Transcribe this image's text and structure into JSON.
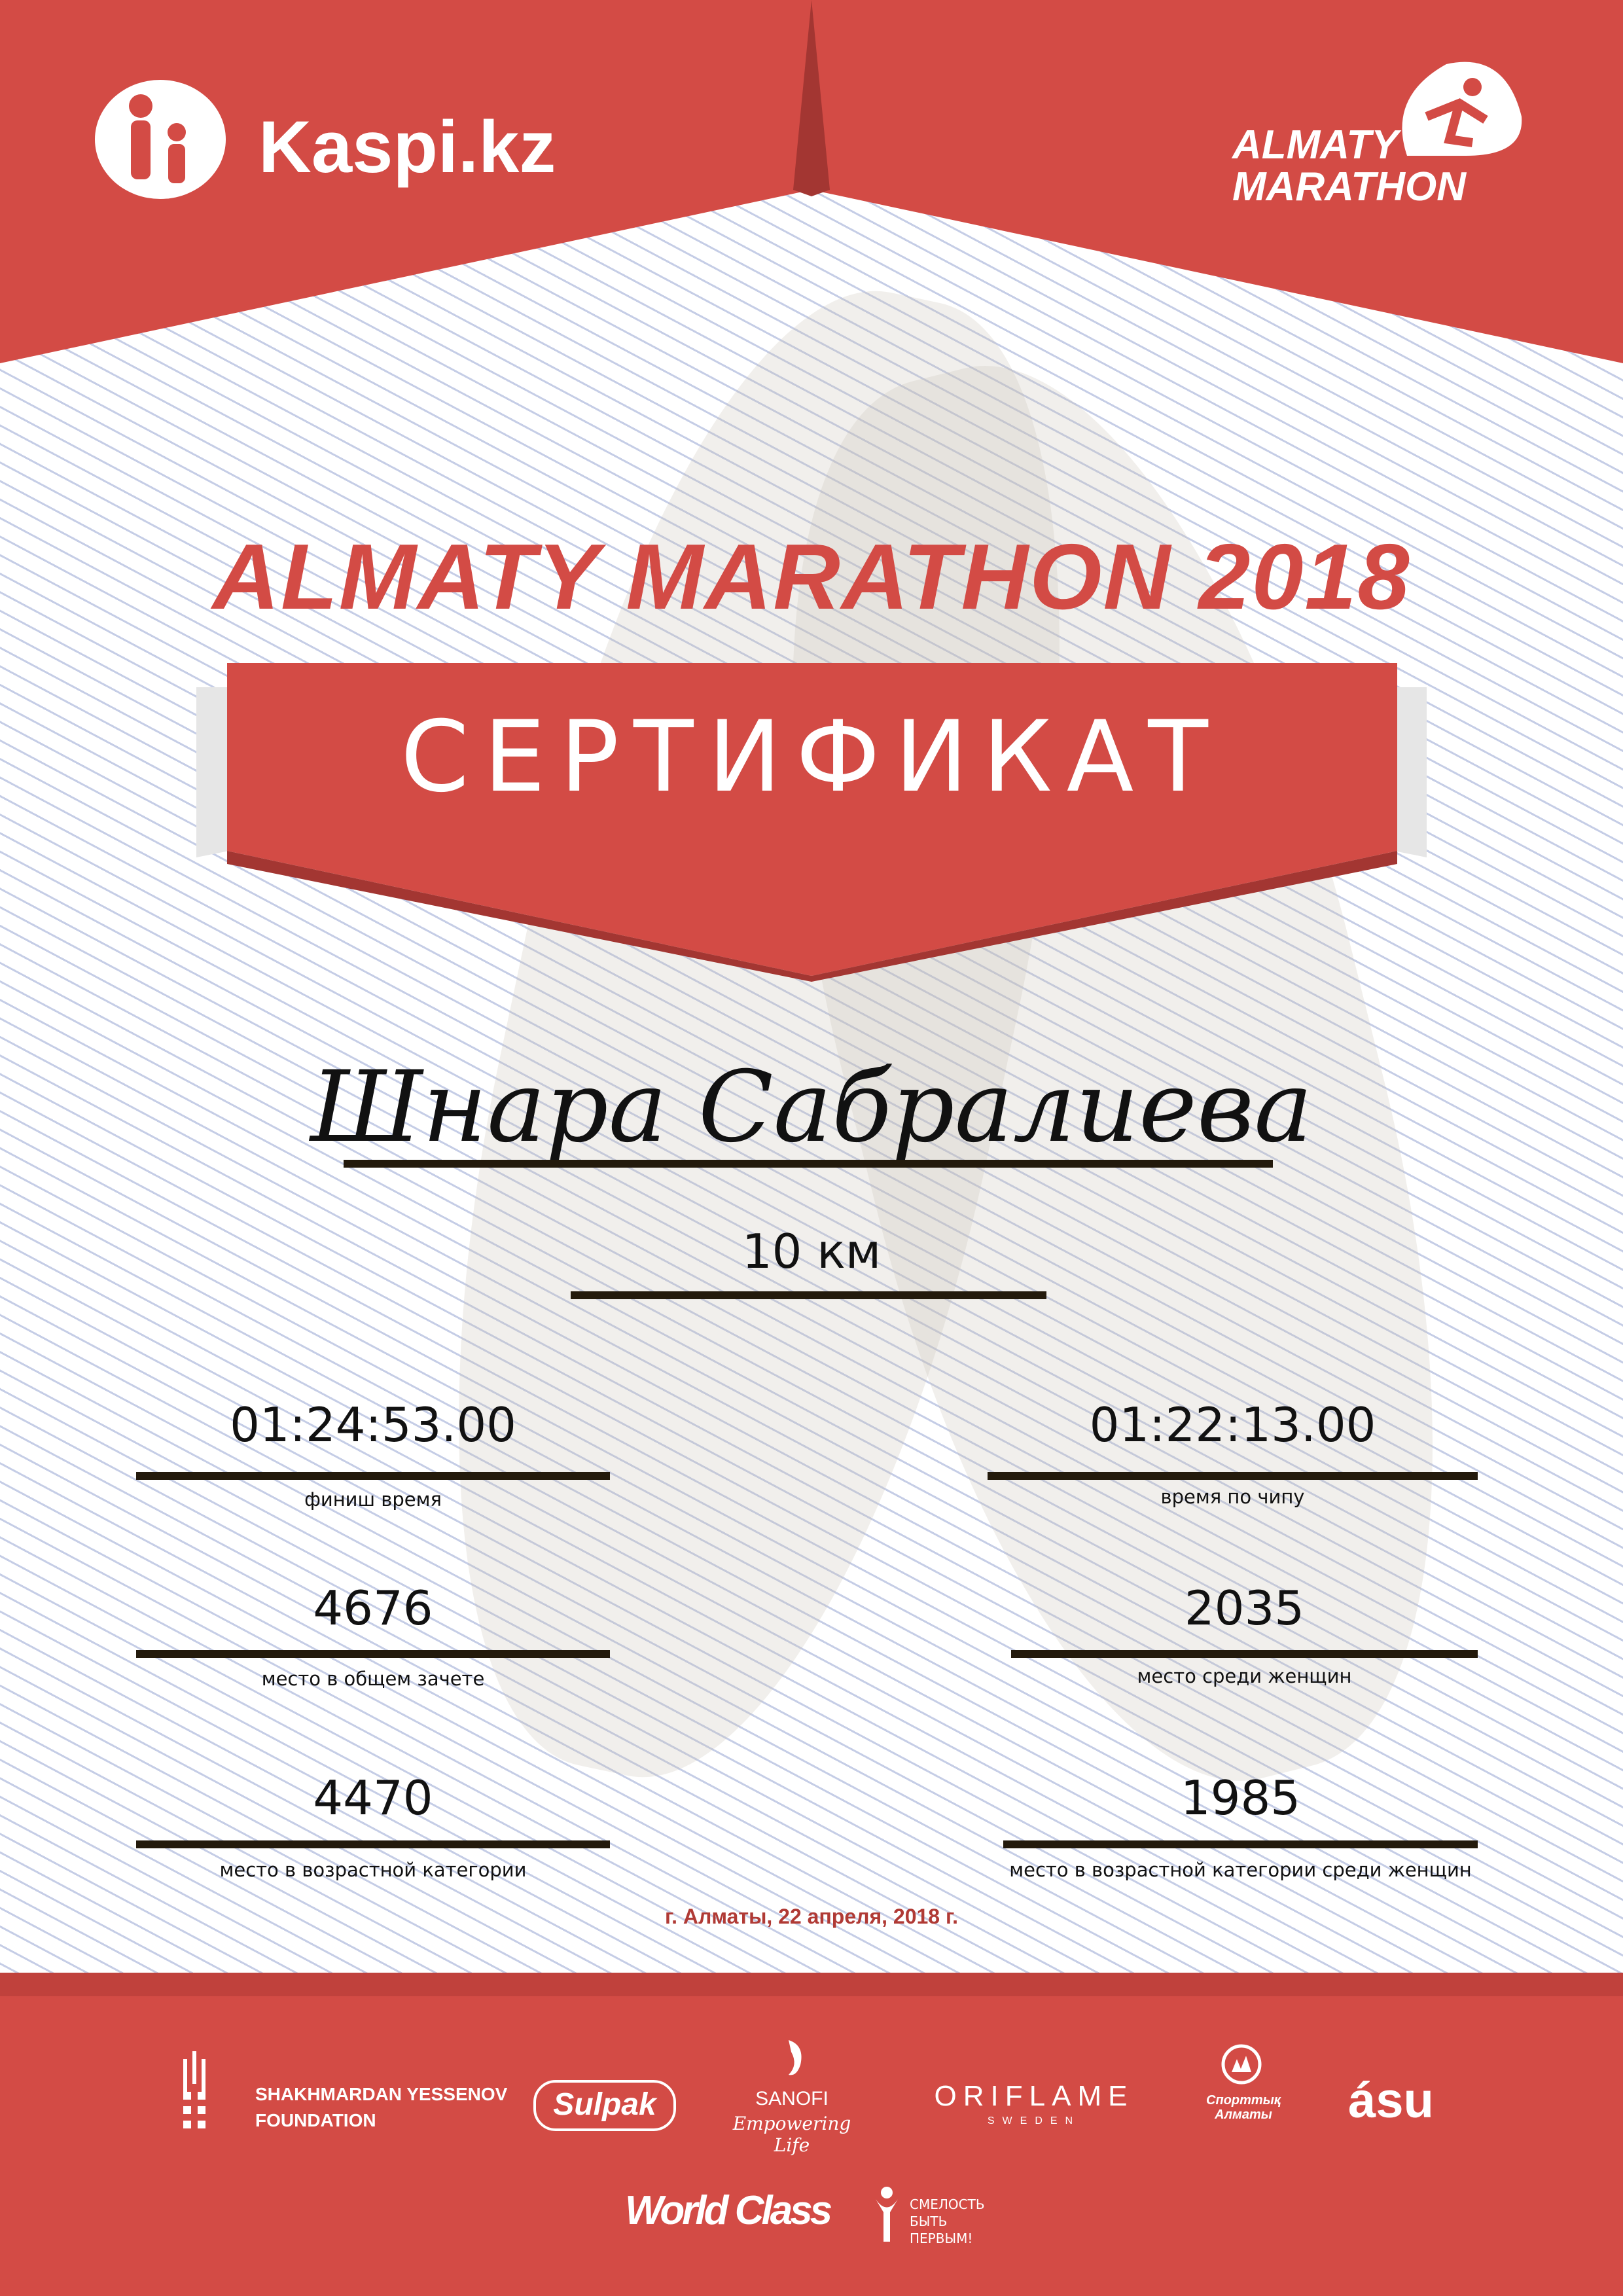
{
  "colors": {
    "brand_red": "#d34b45",
    "line": "#231a0c",
    "date": "#b03a35"
  },
  "header": {
    "kaspi_logo": "Kaspi.kz",
    "marathon_logo_line1": "ALMATY",
    "marathon_logo_line2": "MARATHON"
  },
  "title": "ALMATY MARATHON 2018",
  "certificate_label": "СЕРТИФИКАТ",
  "participant_name": "Шнара Сабралиева",
  "distance": "10 км",
  "results": [
    {
      "value": "01:24:53.00",
      "label": "финиш время"
    },
    {
      "value": "01:22:13.00",
      "label": "время по чипу"
    },
    {
      "value": "4676",
      "label": "место в общем зачете"
    },
    {
      "value": "2035",
      "label": "место среди женщин"
    },
    {
      "value": "4470",
      "label": "место в возрастной категории"
    },
    {
      "value": "1985",
      "label": "место в возрастной категории среди женщин"
    }
  ],
  "date_place": "г. Алматы, 22 апреля, 2018 г.",
  "sponsors": {
    "yessenov_1": "SHAKHMARDAN YESSENOV",
    "yessenov_2": "FOUNDATION",
    "sulpak": "Sulpak",
    "sanofi": "SANOFI",
    "sanofi_tag": "Empowering Life",
    "oriflame": "ORIFLAME",
    "oriflame_sub": "SWEDEN",
    "sport_almaty_1": "Спорттық",
    "sport_almaty_2": "Алматы",
    "asu": "ásu",
    "worldclass": "World Class",
    "fund_1": "СМЕЛОСТЬ",
    "fund_2": "БЫТЬ",
    "fund_3": "ПЕРВЫМ!"
  }
}
